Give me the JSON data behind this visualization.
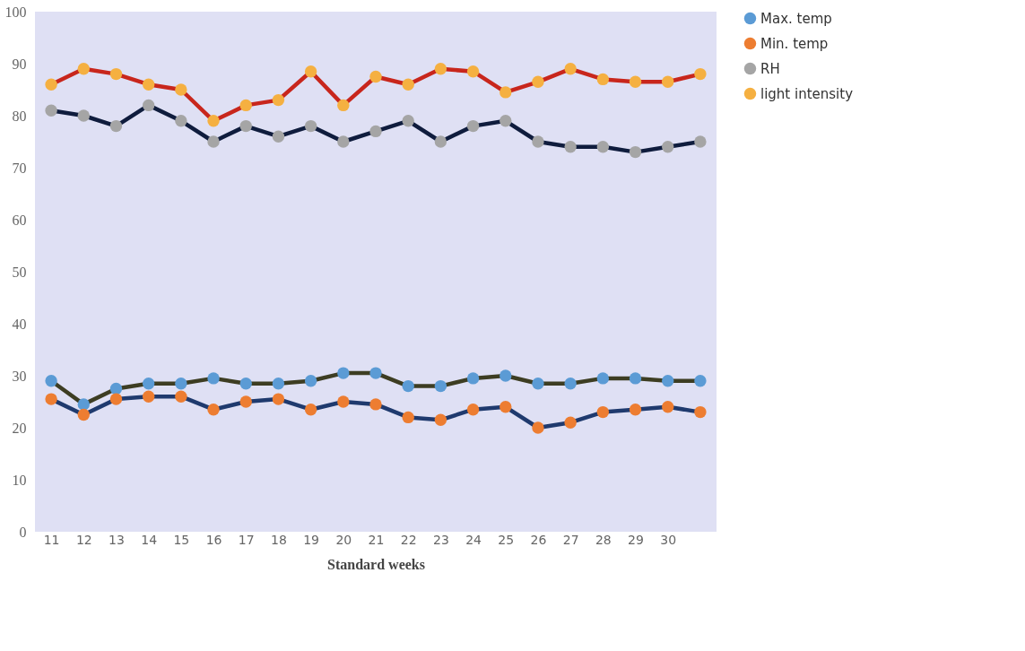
{
  "chart_data": {
    "type": "line",
    "xlabel": "Standard weeks",
    "categories": [
      "11",
      "12",
      "13",
      "14",
      "15",
      "16",
      "17",
      "18",
      "19",
      "20",
      "21",
      "22",
      "23",
      "24",
      "25",
      "26",
      "27",
      "28",
      "29",
      "30",
      null
    ],
    "series": [
      {
        "name": "Max. temp",
        "color": "#3d3d22",
        "colors": [
          "#5b9bd5",
          "#5b9bd5",
          "#5b9bd5",
          "#5b9bd5",
          "#5b9bd5",
          "#5b9bd5",
          "#5b9bd5",
          "#5b9bd5",
          "#5b9bd5",
          "#5b9bd5",
          "#5b9bd5",
          "#5b9bd5",
          "#5b9bd5",
          "#5b9bd5",
          "#5b9bd5",
          "#5b9bd5",
          "#5b9bd5",
          "#5b9bd5",
          "#5b9bd5",
          "#5b9bd5",
          "#5b9bd5"
        ],
        "values": [
          29,
          24.5,
          27.5,
          28.5,
          28.5,
          29.5,
          28.5,
          28.5,
          29,
          30.5,
          30.5,
          28,
          28,
          29.5,
          30,
          28.5,
          28.5,
          29.5,
          29.5,
          29,
          29
        ]
      },
      {
        "name": "Min. temp",
        "color": "#1f3a6e",
        "colors": [
          "#ed7d31",
          "#ed7d31",
          "#ed7d31",
          "#ed7d31",
          "#ed7d31",
          "#ed7d31",
          "#ed7d31",
          "#ed7d31",
          "#ed7d31",
          "#ed7d31",
          "#ed7d31",
          "#ed7d31",
          "#ed7d31",
          "#ed7d31",
          "#ed7d31",
          "#ed7d31",
          "#ed7d31",
          "#ed7d31",
          "#ed7d31",
          "#ed7d31",
          "#ed7d31"
        ],
        "values": [
          25.5,
          22.5,
          25.5,
          26,
          26,
          23.5,
          25,
          25.5,
          23.5,
          25,
          24.5,
          22,
          21.5,
          23.5,
          24,
          20,
          21,
          23,
          23.5,
          24,
          23
        ]
      },
      {
        "name": "RH",
        "color": "#0f1c3d",
        "colors": [
          "#a5a5a5",
          "#a5a5a5",
          "#a5a5a5",
          "#a5a5a5",
          "#a5a5a5",
          "#a5a5a5",
          "#a5a5a5",
          "#a5a5a5",
          "#a5a5a5",
          "#a5a5a5",
          "#a5a5a5",
          "#a5a5a5",
          "#a5a5a5",
          "#a5a5a5",
          "#a5a5a5",
          "#a5a5a5",
          "#a5a5a5",
          "#a5a5a5",
          "#a5a5a5",
          "#a5a5a5",
          "#a5a5a5"
        ],
        "values": [
          81,
          80,
          78,
          82,
          79,
          75,
          78,
          76,
          78,
          75,
          77,
          79,
          75,
          78,
          79,
          75,
          74,
          74,
          73,
          74,
          75
        ]
      },
      {
        "name": "light intensity",
        "color": "#c8261c",
        "colors": [
          "#f5b041",
          "#f5b041",
          "#f5b041",
          "#f5b041",
          "#f5b041",
          "#f5b041",
          "#f5b041",
          "#f5b041",
          "#f5b041",
          "#f5b041",
          "#f5b041",
          "#f5b041",
          "#f5b041",
          "#f5b041",
          "#f5b041",
          "#f5b041",
          "#f5b041",
          "#f5b041",
          "#f5b041",
          "#f5b041",
          "#f5b041"
        ],
        "values": [
          86,
          89,
          88,
          86,
          85,
          79,
          82,
          83,
          88.5,
          82,
          87.5,
          86,
          89,
          88.5,
          84.5,
          86.5,
          89,
          87,
          86.5,
          86.5,
          88
        ]
      }
    ],
    "ylim": [
      0,
      100
    ],
    "yticks": [
      0,
      10,
      20,
      30,
      40,
      50,
      60,
      70,
      80,
      90,
      100
    ],
    "grid": false,
    "legend": "right",
    "marker": "circle",
    "line_style": "solid"
  }
}
